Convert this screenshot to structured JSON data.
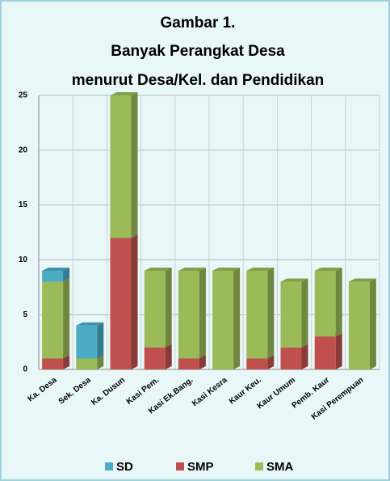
{
  "chart_data": {
    "type": "bar",
    "stacked": true,
    "title": [
      "Gambar 1.",
      "Banyak Perangkat Desa",
      "menurut Desa/Kel. dan Pendidikan"
    ],
    "categories": [
      "Ka. Desa",
      "Sek. Desa",
      "Ka. Dusun",
      "Kasi Pem.",
      "Kasi Ek.Bang.",
      "Kasi Kesra",
      "Kaur Keu.",
      "Kaur Umum",
      "Pemb. Kaur",
      "Kasi Perempuan"
    ],
    "series": [
      {
        "name": "SMP",
        "color": "#c0504d",
        "values": [
          1,
          0,
          12,
          2,
          1,
          0,
          1,
          2,
          3,
          0
        ]
      },
      {
        "name": "SMA",
        "color": "#9bbb59",
        "values": [
          7,
          1,
          13,
          7,
          8,
          9,
          8,
          6,
          6,
          8
        ]
      },
      {
        "name": "SD",
        "color": "#4bacc6",
        "values": [
          1,
          3,
          0,
          0,
          0,
          0,
          0,
          0,
          0,
          0
        ]
      }
    ],
    "legend_order": [
      "SD",
      "SMP",
      "SMA"
    ],
    "ylim": [
      0,
      25
    ],
    "yticks": [
      0,
      5,
      10,
      15,
      20,
      25
    ],
    "grid": true,
    "legend": "bottom"
  }
}
